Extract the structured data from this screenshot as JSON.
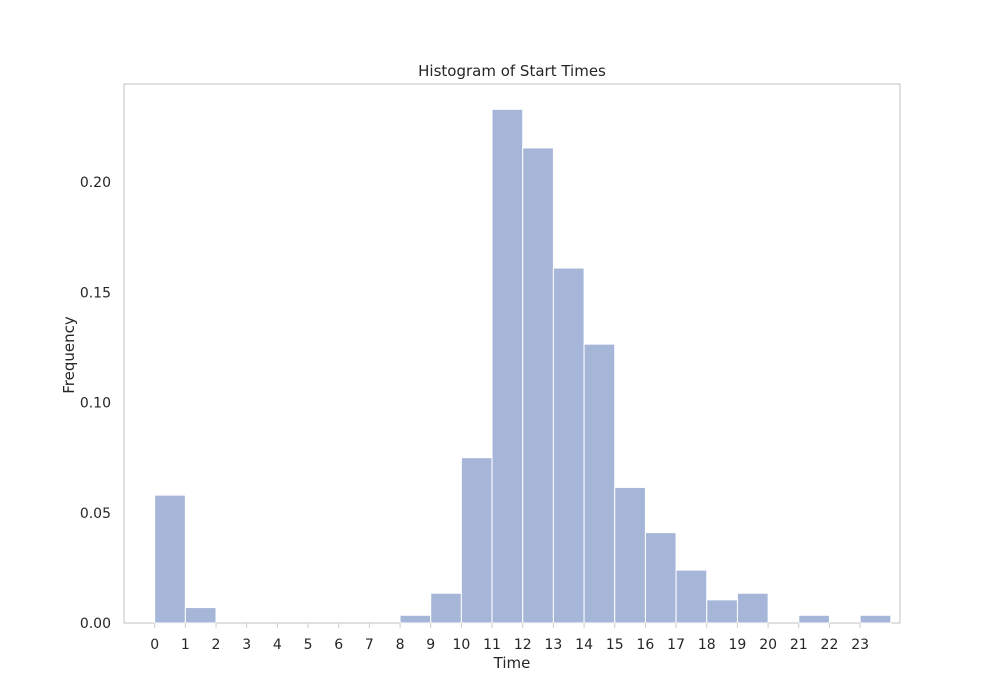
{
  "chart_data": {
    "type": "bar",
    "title": "Histogram of Start Times",
    "xlabel": "Time",
    "ylabel": "Frequency",
    "categories": [
      "0",
      "1",
      "2",
      "3",
      "4",
      "5",
      "6",
      "7",
      "8",
      "9",
      "10",
      "11",
      "12",
      "13",
      "14",
      "15",
      "16",
      "17",
      "18",
      "19",
      "20",
      "21",
      "22",
      "23"
    ],
    "x_ticks": [
      "0",
      "1",
      "2",
      "3",
      "4",
      "5",
      "6",
      "7",
      "8",
      "9",
      "10",
      "11",
      "12",
      "13",
      "14",
      "15",
      "16",
      "17",
      "18",
      "19",
      "20",
      "21",
      "22",
      "23"
    ],
    "y_ticks": [
      "0.00",
      "0.05",
      "0.10",
      "0.15",
      "0.20"
    ],
    "values": [
      0.058,
      0.007,
      0,
      0,
      0,
      0,
      0,
      0,
      0.0035,
      0.0135,
      0.075,
      0.233,
      0.2155,
      0.161,
      0.1265,
      0.0615,
      0.041,
      0.024,
      0.0105,
      0.0135,
      0,
      0.0035,
      0,
      0.0035
    ],
    "ylim": [
      0,
      0.2445
    ],
    "xlim": [
      -1.0,
      24.3
    ],
    "bar_color": "#a5b6d9",
    "bar_edge_color": "#ffffff",
    "frame_color": "#cccccc",
    "grid": false
  }
}
